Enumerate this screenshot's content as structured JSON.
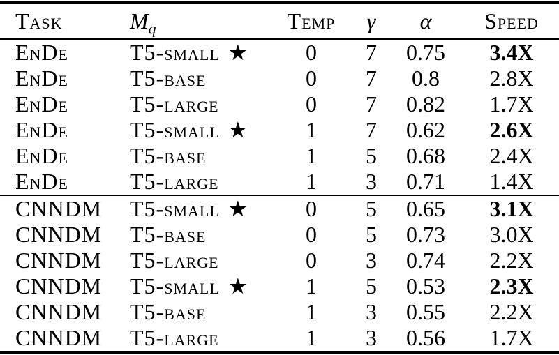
{
  "table": {
    "headers": {
      "task": "Task",
      "mq_main": "M",
      "mq_sub": "q",
      "temp": "Temp",
      "gamma": "γ",
      "alpha": "α",
      "speed": "Speed"
    },
    "star_symbol": "★",
    "groups": [
      {
        "name": "EnDe",
        "rows": [
          {
            "task": "EnDe",
            "model": "T5-small",
            "star": true,
            "temp": "0",
            "gamma": "7",
            "alpha": "0.75",
            "speed": "3.4X",
            "bold_speed": true
          },
          {
            "task": "EnDe",
            "model": "T5-base",
            "star": false,
            "temp": "0",
            "gamma": "7",
            "alpha": "0.8",
            "speed": "2.8X",
            "bold_speed": false
          },
          {
            "task": "EnDe",
            "model": "T5-large",
            "star": false,
            "temp": "0",
            "gamma": "7",
            "alpha": "0.82",
            "speed": "1.7X",
            "bold_speed": false
          },
          {
            "task": "EnDe",
            "model": "T5-small",
            "star": true,
            "temp": "1",
            "gamma": "7",
            "alpha": "0.62",
            "speed": "2.6X",
            "bold_speed": true
          },
          {
            "task": "EnDe",
            "model": "T5-base",
            "star": false,
            "temp": "1",
            "gamma": "5",
            "alpha": "0.68",
            "speed": "2.4X",
            "bold_speed": false
          },
          {
            "task": "EnDe",
            "model": "T5-large",
            "star": false,
            "temp": "1",
            "gamma": "3",
            "alpha": "0.71",
            "speed": "1.4X",
            "bold_speed": false
          }
        ]
      },
      {
        "name": "CNNDM",
        "rows": [
          {
            "task": "CNNDM",
            "model": "T5-small",
            "star": true,
            "temp": "0",
            "gamma": "5",
            "alpha": "0.65",
            "speed": "3.1X",
            "bold_speed": true
          },
          {
            "task": "CNNDM",
            "model": "T5-base",
            "star": false,
            "temp": "0",
            "gamma": "5",
            "alpha": "0.73",
            "speed": "3.0X",
            "bold_speed": false
          },
          {
            "task": "CNNDM",
            "model": "T5-large",
            "star": false,
            "temp": "0",
            "gamma": "3",
            "alpha": "0.74",
            "speed": "2.2X",
            "bold_speed": false
          },
          {
            "task": "CNNDM",
            "model": "T5-small",
            "star": true,
            "temp": "1",
            "gamma": "5",
            "alpha": "0.53",
            "speed": "2.3X",
            "bold_speed": true
          },
          {
            "task": "CNNDM",
            "model": "T5-base",
            "star": false,
            "temp": "1",
            "gamma": "3",
            "alpha": "0.55",
            "speed": "2.2X",
            "bold_speed": false
          },
          {
            "task": "CNNDM",
            "model": "T5-large",
            "star": false,
            "temp": "1",
            "gamma": "3",
            "alpha": "0.56",
            "speed": "1.7X",
            "bold_speed": false
          }
        ]
      }
    ]
  }
}
